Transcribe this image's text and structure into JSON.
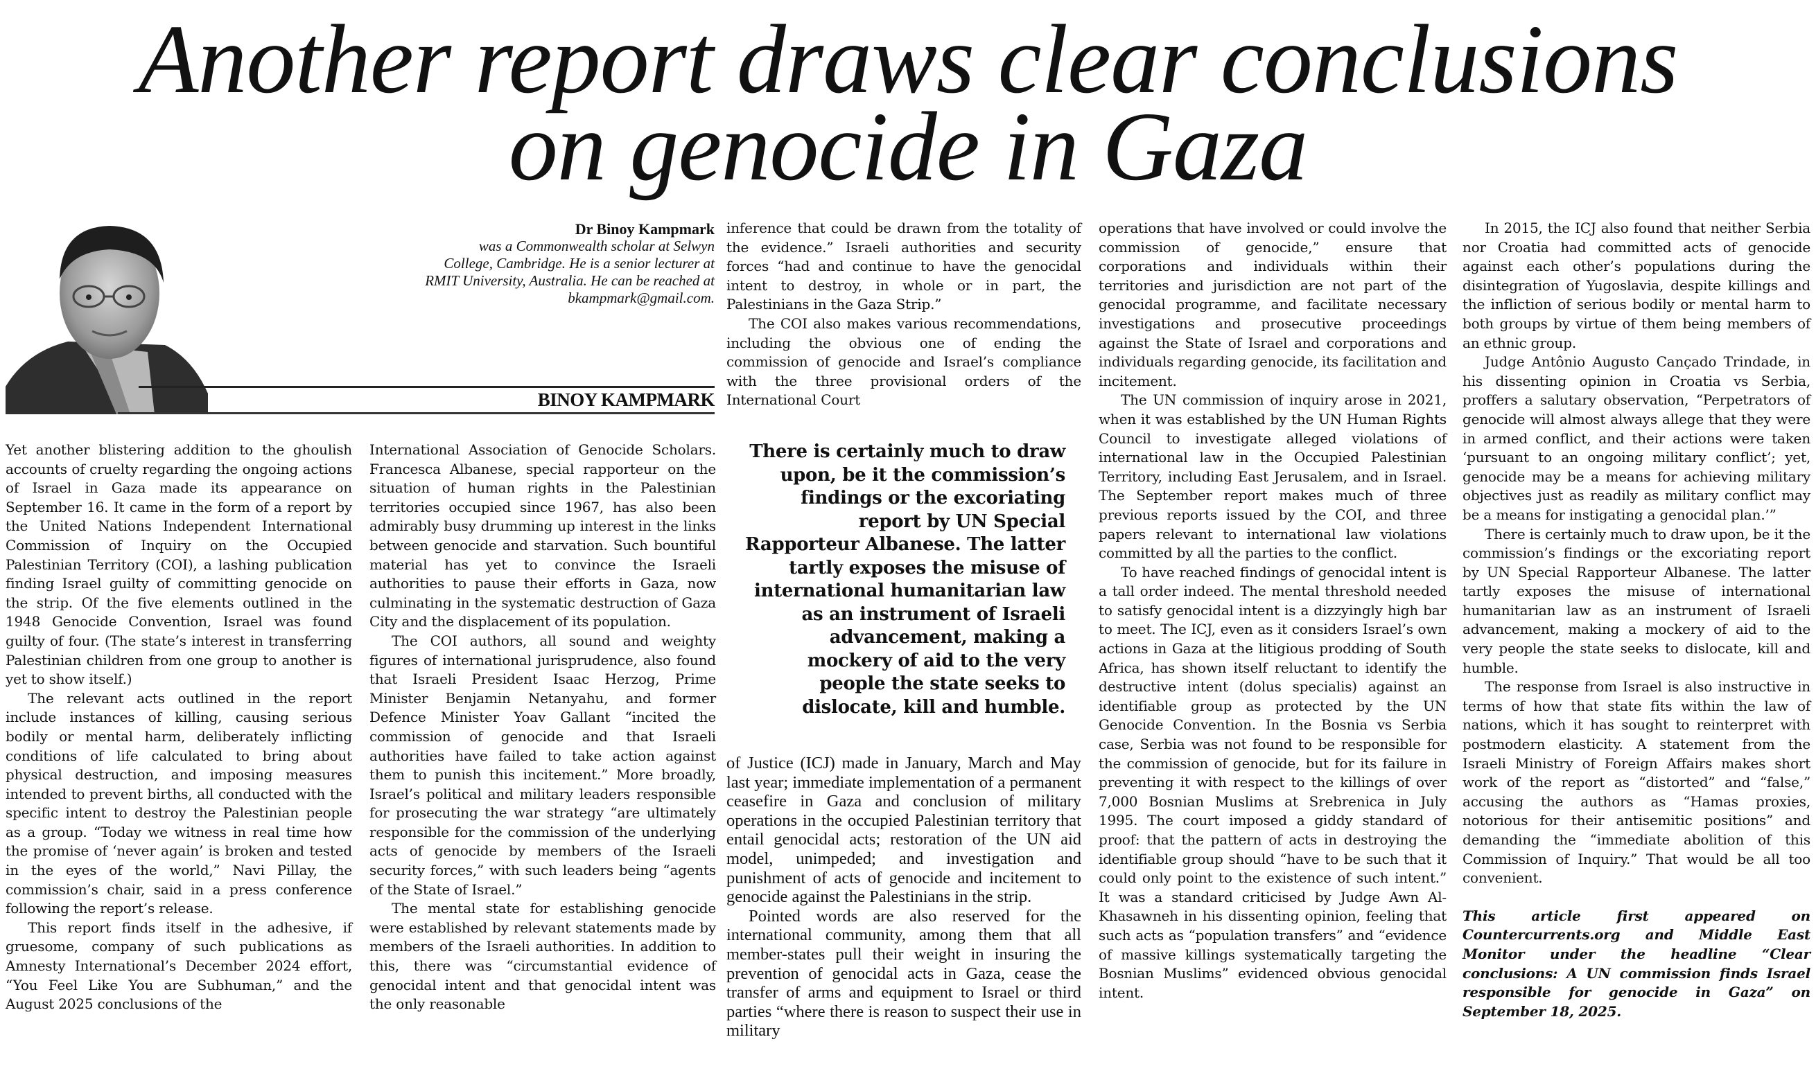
{
  "headline": {
    "line1": "Another report draws clear conclusions",
    "line2": "on genocide in Gaza"
  },
  "author": {
    "bio_name": "Dr Binoy Kampmark",
    "bio_lines": [
      "was a Commonwealth scholar at Selwyn",
      "College, Cambridge. He is a senior lecturer at",
      "RMIT University, Australia. He can be reached at",
      "bkampmark@gmail.com."
    ],
    "byline": "BINOY KAMPMARK",
    "photo": "author-portrait-grayscale"
  },
  "columns": {
    "col1": [
      "Yet another blistering addition to the ghoulish accounts of cruelty regarding the ongoing actions of Israel in Gaza made its appearance on September 16. It came in the form of a report by the United Nations Independent International Commission of Inquiry on the Occupied Palestinian Territory (COI), a lashing publication finding Israel guilty of committing genocide on the strip. Of the five elements outlined in the 1948 Genocide Convention, Israel was found guilty of four. (The state’s interest in transferring Palestinian children from one group to another is yet to show itself.)",
      "The relevant acts outlined in the report include instances of killing, causing serious bodily or mental harm, deliberately inflicting conditions of life calculated to bring about physical destruction, and imposing measures intended to prevent births, all conducted with the specific intent to destroy the Palestinian people as a group. “Today we witness in real time how the promise of ‘never again’ is broken and tested in the eyes of the world,” Navi Pillay, the commission’s chair, said in a press conference following the report’s release.",
      "This report finds itself in the adhesive, if gruesome, company of such publications as Amnesty International’s December 2024 effort, “You Feel Like You are Subhuman,” and the August 2025 conclusions of the"
    ],
    "col2": [
      "International Association of Genocide Scholars. Francesca Albanese, special rapporteur on the situation of human rights in the Palestinian territories occupied since 1967, has also been admirably busy drumming up interest in the links between genocide and starvation. Such bountiful material has yet to convince the Israeli authorities to pause their efforts in Gaza, now culminating in the systematic destruction of Gaza City and the displacement of its population.",
      "The COI authors, all sound and weighty figures of international jurisprudence, also found that Israeli President Isaac Herzog, Prime Minister Benjamin Netanyahu, and former Defence Minister Yoav Gallant “incited the commission of genocide and that Israeli authorities have failed to take action against them to punish this incitement.” More broadly, Israel’s political and military leaders responsible for prosecuting the war strategy “are ultimately responsible for the commission of the underlying acts of genocide by members of the Israeli security forces,” with such leaders being “agents of the State of Israel.”",
      "The mental state for establishing genocide were established by relevant statements made by members of the Israeli authorities. In addition to this, there was “circumstantial evidence of genocidal intent and that genocidal intent was the only reasonable"
    ],
    "col3_top": [
      "inference that could be drawn from the totality of the evidence.” Israeli authorities and security forces “had and continue to have the genocidal intent to destroy, in whole or in part, the Palestinians in the Gaza Strip.”",
      "The COI also makes various recommendations, including the obvious one of ending the commission of genocide and Israel’s compliance with the three provisional orders of the International Court"
    ],
    "pull_quote": "There is certainly much to draw upon, be it the commission’s findings or the excoriating report by UN Special Rapporteur Albanese. The latter tartly exposes the misuse of international humanitarian law as an instrument of Israeli advancement, making a mockery of aid to the very people the state seeks to dislocate, kill and humble.",
    "col3_bottom": [
      "of Justice (ICJ) made in January, March and May last year; immediate implementation of a permanent ceasefire in Gaza and conclusion of military operations in the occupied Palestinian territory that entail genocidal acts; restoration of the UN aid model, unimpeded; and investigation and punishment of acts of genocide and incitement to genocide against the Palestinians in the strip.",
      "Pointed words are also reserved for the international community, among them that all member-states pull their weight in insuring the prevention of genocidal acts in Gaza, cease the transfer of arms and equipment to Israel or third parties “where there is reason to suspect their use in military"
    ],
    "col4": [
      "operations that have involved or could involve the commission of genocide,” ensure that corporations and individuals within their territories and jurisdiction are not part of the genocidal programme, and facilitate necessary investigations and prosecutive proceedings against the State of Israel and corporations and individuals regarding genocide, its facilitation and incitement.",
      "The UN commission of inquiry arose in 2021, when it was established by the UN Human Rights Council to investigate alleged violations of international law in the Occupied Palestinian Territory, including East Jerusalem, and in Israel. The September report makes much of three previous reports issued by the COI, and three papers relevant to international law violations committed by all the parties to the conflict.",
      "To have reached findings of genocidal intent is a tall order indeed. The mental threshold needed to satisfy genocidal intent is a dizzyingly high bar to meet. The ICJ, even as it considers Israel’s own actions in Gaza at the litigious prodding of South Africa, has shown itself reluctant to identify the destructive intent (dolus specialis) against an identifiable group as protected by the UN Genocide Convention. In the Bosnia vs Serbia case, Serbia was not found to be responsible for the commission of genocide, but for its failure in preventing it with respect to the killings of over 7,000 Bosnian Muslims at Srebrenica in July 1995. The court imposed a giddy standard of proof: that the pattern of acts in destroying the identifiable group should “have to be such that it could only point to the existence of such intent.” It was a standard criticised by Judge Awn Al-Khasawneh in his dissenting opinion, feeling that such acts as “population transfers” and “evidence of massive killings systematically targeting the Bosnian Muslims” evidenced obvious genocidal intent."
    ],
    "col5": [
      "In 2015, the ICJ also found that neither Serbia nor Croatia had committed acts of genocide against each other’s populations during the disintegration of Yugoslavia, despite killings and the infliction of serious bodily or mental harm to both groups by virtue of them being members of an ethnic group.",
      "Judge Antônio Augusto Cançado Trindade, in his dissenting opinion in Croatia vs Serbia, proffers a salutary observation, “Perpetrators of genocide will almost always allege that they were in armed conflict, and their actions were taken ‘pursuant to an ongoing military conflict’; yet, genocide may be a means for achieving military objectives just as readily as military conflict may be a means for instigating a genocidal plan.’”",
      "There is certainly much to draw upon, be it the commission’s findings or the excoriating report by UN Special Rapporteur Albanese. The latter tartly exposes the misuse of international humanitarian law as an instrument of Israeli advancement, making a mockery of aid to the very people the state seeks to dislocate, kill and humble.",
      "The response from Israel is also instructive in terms of how that state fits within the law of nations, which it has sought to reinterpret with postmodern elasticity. A statement from the Israeli Ministry of Foreign Affairs makes short work of the report as “distorted” and “false,” accusing the authors as “Hamas proxies, notorious for their antisemitic positions” and demanding the “immediate abolition of this Commission of Inquiry.” That would be all too convenient."
    ],
    "footer_note": "This article first appeared on Countercurrents.org and Middle East Monitor under the headline “Clear conclusions: A UN commission finds Israel responsible for genocide in Gaza” on September 18, 2025."
  }
}
